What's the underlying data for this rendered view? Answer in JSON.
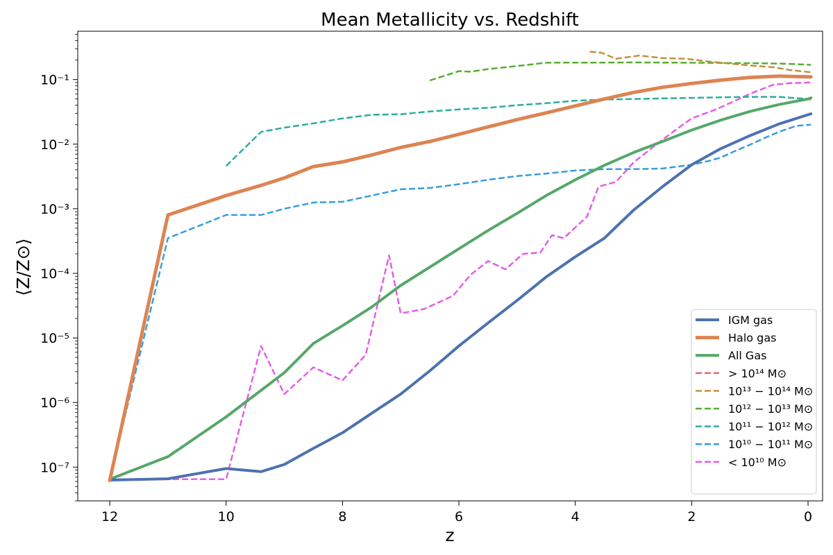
{
  "chart_data": {
    "type": "line",
    "title": "Mean Metallicity vs. Redshift",
    "xlabel": "z",
    "ylabel": "⟨Z/Z⊙⟩",
    "xlim": [
      12.55,
      -0.25
    ],
    "xscale": "linear",
    "xaxis_reversed": true,
    "yscale": "log",
    "ylim": [
      3e-08,
      0.56
    ],
    "xticks": [
      12,
      10,
      8,
      6,
      4,
      2,
      0
    ],
    "xtick_labels": [
      "12",
      "10",
      "8",
      "6",
      "4",
      "2",
      "0"
    ],
    "yticks_exp": [
      -7,
      -6,
      -5,
      -4,
      -3,
      -2,
      -1
    ],
    "ytick_labels": [
      "10⁻⁷",
      "10⁻⁶",
      "10⁻⁵",
      "10⁻⁴",
      "10⁻³",
      "10⁻²",
      "10⁻¹"
    ],
    "grid": false,
    "legend_position": "lower right",
    "series": [
      {
        "name": "IGM gas",
        "color": "#4c72b0",
        "style": "solid",
        "width": 4,
        "x": [
          12,
          11,
          10,
          9.4,
          9,
          8.5,
          8,
          7.5,
          7,
          6.5,
          6,
          5.5,
          5,
          4.5,
          4,
          3.5,
          3,
          2.5,
          2,
          1.5,
          1,
          0.5,
          0,
          -0.05
        ],
        "y": [
          6.3e-08,
          6.6e-08,
          9.5e-08,
          8.5e-08,
          1.1e-07,
          1.95e-07,
          3.4e-07,
          6.8e-07,
          1.35e-06,
          3.1e-06,
          7.5e-06,
          1.7e-05,
          3.8e-05,
          8.8e-05,
          0.00018,
          0.00035,
          0.00095,
          0.0022,
          0.0048,
          0.0085,
          0.0135,
          0.0205,
          0.0285,
          0.0295
        ]
      },
      {
        "name": "Halo gas",
        "color": "#dd8452",
        "style": "solid",
        "width": 5,
        "x": [
          12,
          11,
          10,
          9.4,
          9,
          8.5,
          8,
          7.5,
          7,
          6.5,
          6,
          5.5,
          5,
          4.5,
          4,
          3.5,
          3,
          2.5,
          2,
          1.5,
          1,
          0.5,
          0,
          -0.05
        ],
        "y": [
          6.2e-08,
          0.0008,
          0.0016,
          0.0023,
          0.003,
          0.0045,
          0.0053,
          0.0068,
          0.0089,
          0.011,
          0.0142,
          0.0185,
          0.024,
          0.0305,
          0.039,
          0.05,
          0.063,
          0.076,
          0.087,
          0.098,
          0.108,
          0.113,
          0.11,
          0.11
        ]
      },
      {
        "name": "All Gas",
        "color": "#55a868",
        "style": "solid",
        "width": 4,
        "x": [
          12,
          11,
          10,
          9,
          8.5,
          8,
          7.5,
          7,
          6.5,
          6,
          5.5,
          5,
          4.5,
          4,
          3.5,
          3,
          2.5,
          2,
          1.5,
          1,
          0.5,
          0,
          -0.05
        ],
        "y": [
          6.5e-08,
          1.45e-07,
          6e-07,
          2.9e-06,
          8.2e-06,
          1.55e-05,
          3e-05,
          6.5e-05,
          0.000125,
          0.00024,
          0.00046,
          0.00085,
          0.0016,
          0.0028,
          0.0047,
          0.0074,
          0.011,
          0.0165,
          0.0235,
          0.032,
          0.041,
          0.05,
          0.052
        ]
      },
      {
        "name": "> 10¹⁴ M⊙",
        "color": "#e8696f",
        "style": "dashed",
        "width": 2.5,
        "x": [
          1.5,
          1.2,
          1,
          0.6,
          0.3,
          -0.05
        ],
        "y": [
          0.185,
          0.168,
          0.162,
          0.155,
          0.145,
          0.135
        ]
      },
      {
        "name": "10¹³ − 10¹⁴ M⊙",
        "color": "#c0913a",
        "style": "dashed",
        "width": 2.5,
        "x": [
          3.75,
          3.55,
          3.3,
          2.9,
          2.5,
          2.1,
          1.7,
          1.3,
          1,
          0.6,
          0.3,
          -0.05
        ],
        "y": [
          0.27,
          0.26,
          0.21,
          0.235,
          0.215,
          0.21,
          0.19,
          0.175,
          0.165,
          0.155,
          0.14,
          0.13
        ]
      },
      {
        "name": "10¹² − 10¹³ M⊙",
        "color": "#56ad30",
        "style": "dashed",
        "width": 2.5,
        "x": [
          6.5,
          6.2,
          6,
          5.8,
          5.5,
          5,
          4.5,
          4,
          3.5,
          3,
          2.5,
          2,
          1.5,
          1,
          0.5,
          0,
          -0.05
        ],
        "y": [
          0.097,
          0.118,
          0.135,
          0.132,
          0.145,
          0.162,
          0.182,
          0.183,
          0.183,
          0.184,
          0.183,
          0.182,
          0.181,
          0.179,
          0.177,
          0.17,
          0.168
        ]
      },
      {
        "name": "10¹¹ − 10¹² M⊙",
        "color": "#2bada0",
        "style": "dashed",
        "width": 2.5,
        "x": [
          10,
          9.4,
          9,
          8.5,
          8,
          7.5,
          7,
          6.5,
          6,
          5.5,
          5,
          4.5,
          4,
          3.5,
          3,
          2.5,
          2,
          1.5,
          1,
          0.5,
          0,
          -0.05
        ],
        "y": [
          0.0046,
          0.0155,
          0.018,
          0.021,
          0.025,
          0.0285,
          0.029,
          0.032,
          0.0345,
          0.0365,
          0.04,
          0.043,
          0.047,
          0.049,
          0.05,
          0.051,
          0.052,
          0.053,
          0.054,
          0.054,
          0.05,
          0.049
        ]
      },
      {
        "name": "10¹⁰ − 10¹¹ M⊙",
        "color": "#379ddc",
        "style": "dashed",
        "width": 2.5,
        "x": [
          12,
          11,
          10,
          9.4,
          9,
          8.5,
          8,
          7.5,
          7,
          6.5,
          6,
          5.5,
          5,
          4.5,
          4,
          3.5,
          3,
          2.5,
          2,
          1.7,
          1.5,
          1.3,
          1,
          0.7,
          0.5,
          0.2,
          -0.05
        ],
        "y": [
          6.5e-08,
          0.00035,
          0.0008,
          0.0008,
          0.001,
          0.00125,
          0.00128,
          0.0016,
          0.002,
          0.0021,
          0.0024,
          0.0028,
          0.0032,
          0.0035,
          0.0039,
          0.0041,
          0.0041,
          0.0042,
          0.0048,
          0.0055,
          0.0062,
          0.0075,
          0.0098,
          0.013,
          0.0155,
          0.0192,
          0.02
        ]
      },
      {
        "name": "< 10¹⁰ M⊙",
        "color": "#e55de7",
        "style": "dashed",
        "width": 2.5,
        "x": [
          12,
          11,
          10,
          9.4,
          9,
          8.5,
          8,
          7.6,
          7.2,
          7,
          6.6,
          6.1,
          5.8,
          5.5,
          5.2,
          4.9,
          4.6,
          4.4,
          4.2,
          3.8,
          3.6,
          3.3,
          3.0,
          2.6,
          2.3,
          2.0,
          1.6,
          1.3,
          1.0,
          0.6,
          0.3,
          -0.05
        ],
        "y": [
          6.5e-08,
          6.5e-08,
          6.5e-08,
          7.5e-06,
          1.35e-06,
          3.5e-06,
          2.2e-06,
          5.5e-06,
          0.00019,
          2.4e-05,
          2.8e-05,
          4.5e-05,
          9.5e-05,
          0.000155,
          0.000115,
          0.0002,
          0.00021,
          0.00039,
          0.00035,
          0.00075,
          0.0022,
          0.0026,
          0.0052,
          0.01,
          0.016,
          0.025,
          0.034,
          0.045,
          0.06,
          0.083,
          0.088,
          0.09
        ]
      }
    ]
  }
}
